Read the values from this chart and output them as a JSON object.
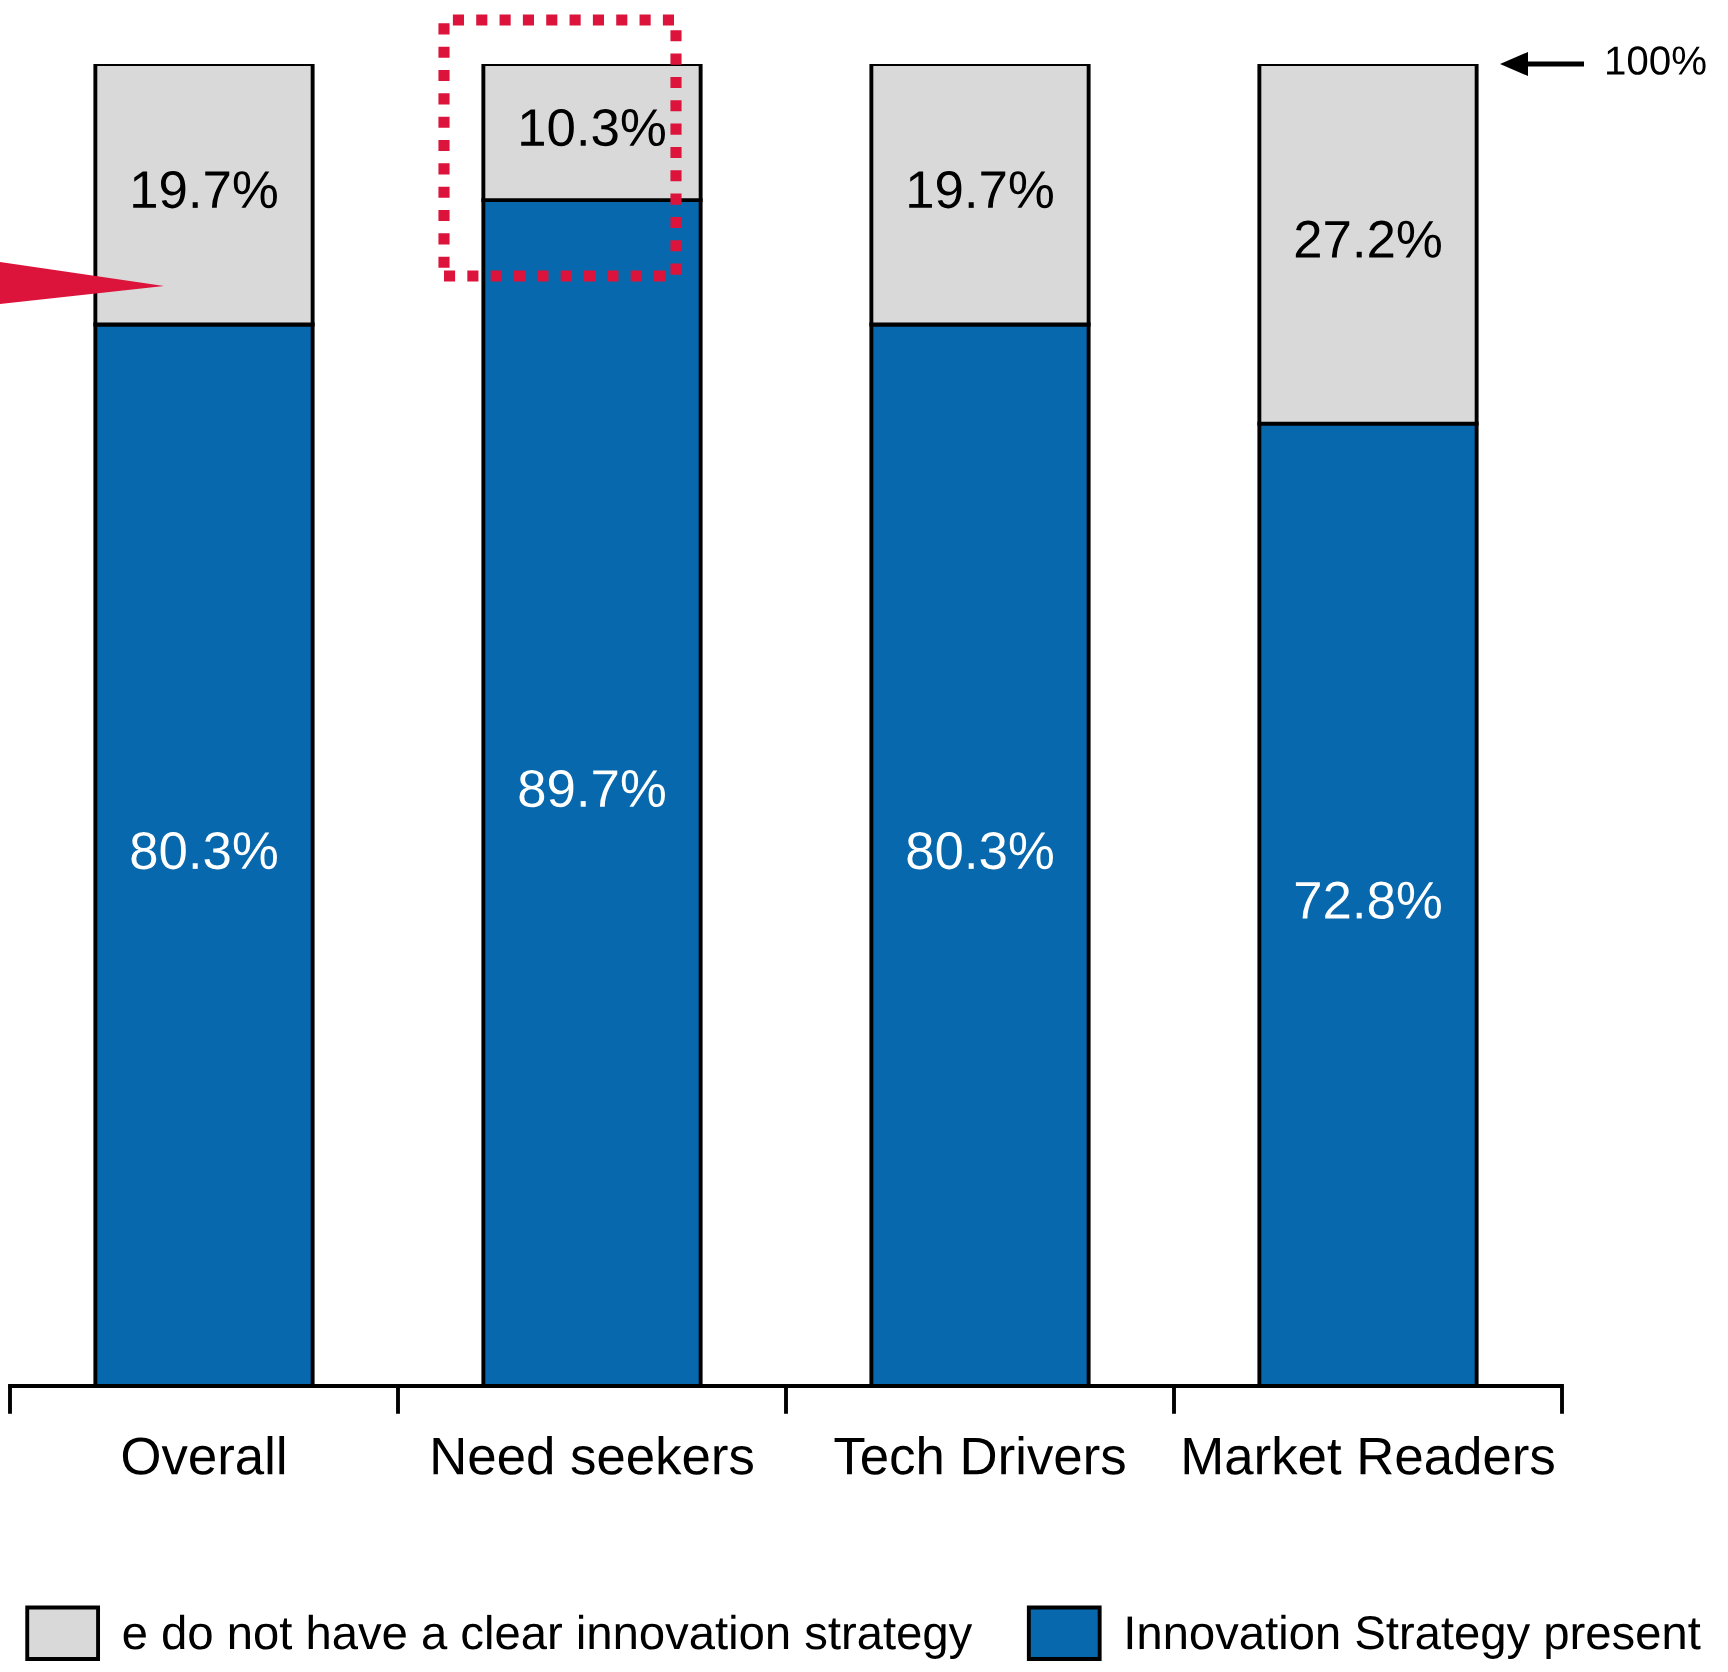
{
  "chart_data": {
    "type": "bar",
    "stacked": true,
    "categories": [
      "Overall",
      "Need seekers",
      "Tech Drivers",
      "Market Readers"
    ],
    "series": [
      {
        "name": "Innovation Strategy present",
        "color": "#0868ad",
        "values": [
          80.3,
          89.7,
          80.3,
          72.8
        ],
        "value_labels": [
          "80.3%",
          "89.7%",
          "80.3%",
          "72.8%"
        ]
      },
      {
        "name": "e do not have a clear innovation strategy",
        "color": "#d9d9d9",
        "values": [
          19.7,
          10.3,
          19.7,
          27.2
        ],
        "value_labels": [
          "19.7%",
          "10.3%",
          "19.7%",
          "27.2%"
        ]
      }
    ],
    "ylim": [
      0,
      100
    ],
    "tick_labels": "x",
    "legend": "bottom",
    "annotations": [
      "100%"
    ]
  }
}
